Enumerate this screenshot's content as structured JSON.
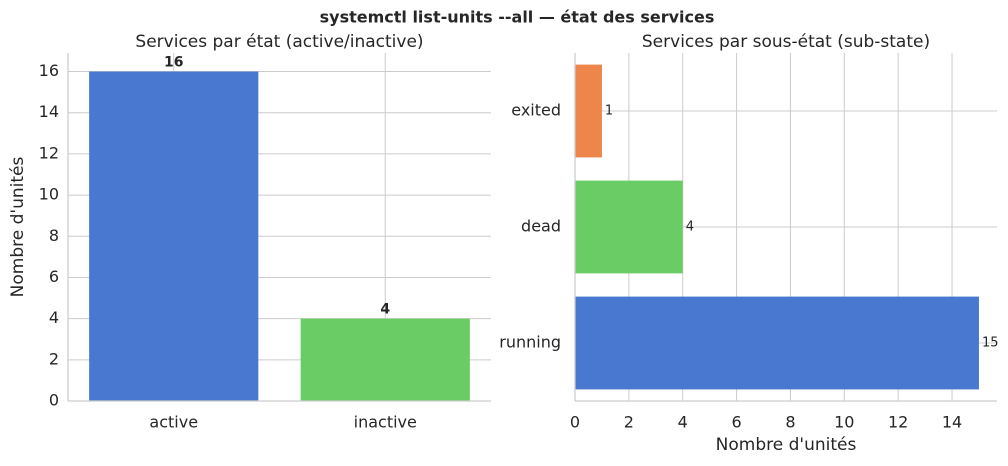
{
  "title": "systemctl list-units --all — état des services",
  "chart_data": [
    {
      "type": "bar",
      "title": "Services par état (active/inactive)",
      "ylabel": "Nombre d'unités",
      "categories": [
        "active",
        "inactive"
      ],
      "values": [
        16,
        4
      ],
      "colors": [
        "#4878d0",
        "#6acc64"
      ],
      "ylim": [
        0,
        16.9
      ],
      "yticks": [
        0,
        2,
        4,
        6,
        8,
        10,
        12,
        14,
        16
      ],
      "grid": true
    },
    {
      "type": "barh",
      "title": "Services par sous-état (sub-state)",
      "xlabel": "Nombre d'unités",
      "categories": [
        "running",
        "dead",
        "exited"
      ],
      "values": [
        15,
        4,
        1
      ],
      "colors": [
        "#4878d0",
        "#6acc64",
        "#ee854a"
      ],
      "xlim": [
        0,
        15.67
      ],
      "xticks": [
        0,
        2,
        4,
        6,
        8,
        10,
        12,
        14
      ],
      "grid": true
    }
  ]
}
